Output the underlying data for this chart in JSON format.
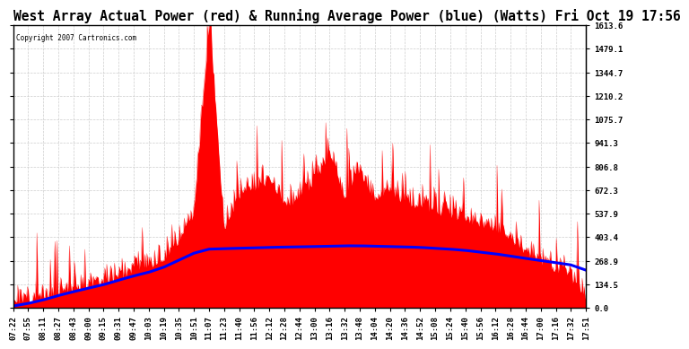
{
  "title": "West Array Actual Power (red) & Running Average Power (blue) (Watts) Fri Oct 19 17:56",
  "copyright": "Copyright 2007 Cartronics.com",
  "ylim": [
    0.0,
    1613.6
  ],
  "yticks": [
    0.0,
    134.5,
    268.9,
    403.4,
    537.9,
    672.3,
    806.8,
    941.3,
    1075.7,
    1210.2,
    1344.7,
    1479.1,
    1613.6
  ],
  "xtick_labels": [
    "07:22",
    "07:55",
    "08:11",
    "08:27",
    "08:43",
    "09:00",
    "09:15",
    "09:31",
    "09:47",
    "10:03",
    "10:19",
    "10:35",
    "10:51",
    "11:07",
    "11:23",
    "11:40",
    "11:56",
    "12:12",
    "12:28",
    "12:44",
    "13:00",
    "13:16",
    "13:32",
    "13:48",
    "14:04",
    "14:20",
    "14:36",
    "14:52",
    "15:08",
    "15:24",
    "15:40",
    "15:56",
    "16:12",
    "16:28",
    "16:44",
    "17:00",
    "17:16",
    "17:32",
    "17:51"
  ],
  "actual_raw": [
    5,
    20,
    40,
    65,
    90,
    110,
    130,
    160,
    190,
    220,
    260,
    370,
    520,
    1610,
    420,
    620,
    660,
    710,
    560,
    610,
    710,
    860,
    610,
    760,
    590,
    630,
    590,
    560,
    530,
    510,
    490,
    460,
    420,
    380,
    300,
    250,
    200,
    150,
    30
  ],
  "avg_raw": [
    10,
    25,
    45,
    70,
    92,
    112,
    132,
    158,
    182,
    203,
    232,
    272,
    312,
    335,
    338,
    340,
    342,
    345,
    347,
    348,
    350,
    352,
    354,
    354,
    352,
    350,
    348,
    345,
    340,
    335,
    328,
    318,
    308,
    295,
    282,
    270,
    258,
    245,
    215
  ],
  "bg_color": "#ffffff",
  "plot_bg_color": "#ffffff",
  "grid_color": "#c8c8c8",
  "actual_color": "red",
  "avg_color": "blue",
  "title_fontsize": 10.5,
  "axis_fontsize": 6.5
}
